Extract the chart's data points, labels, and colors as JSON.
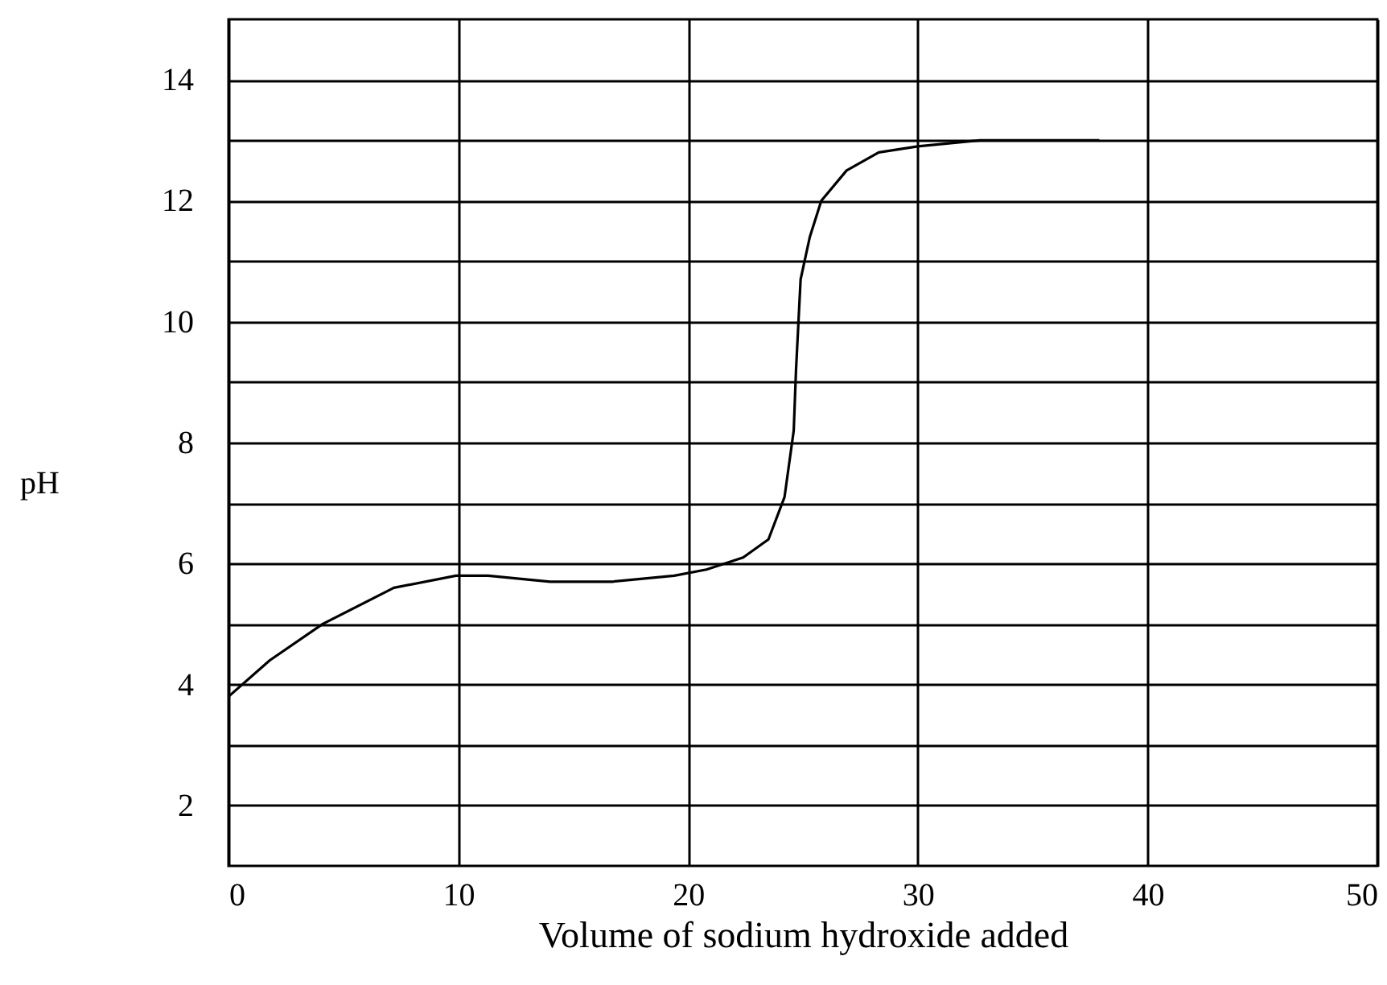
{
  "chart_data": {
    "type": "line",
    "xlabel": "Volume of sodium hydroxide added",
    "ylabel": "pH",
    "x": [
      0,
      1.8,
      4.1,
      7.2,
      9.9,
      11.3,
      14,
      16.7,
      19.4,
      20.8,
      22.4,
      23.5,
      24.2,
      24.6,
      24.7,
      24.9,
      25.3,
      25.8,
      26.9,
      28.3,
      30,
      32.7,
      36.2,
      37.9
    ],
    "series": [
      {
        "color": "#000000",
        "values": [
          3.8,
          4.4,
          5.0,
          5.6,
          5.8,
          5.8,
          5.7,
          5.7,
          5.8,
          5.9,
          6.1,
          6.4,
          7.1,
          8.2,
          9.2,
          10.7,
          11.4,
          12.0,
          12.5,
          12.8,
          12.9,
          13.0,
          13.0,
          13.0
        ]
      }
    ],
    "xlim": [
      0,
      50
    ],
    "xticks": [
      0,
      10,
      20,
      30,
      40,
      50
    ],
    "ylim": [
      1,
      15
    ],
    "yticks": [
      2,
      4,
      6,
      8,
      10,
      12,
      14,
      {
        "value": 3,
        "label": null
      },
      {
        "value": 5,
        "label": null
      },
      {
        "value": 7,
        "label": null
      },
      {
        "value": 9,
        "label": null
      },
      {
        "value": 11,
        "label": null
      },
      {
        "value": 13,
        "label": null
      }
    ],
    "grid": true,
    "line_style": "solid"
  }
}
